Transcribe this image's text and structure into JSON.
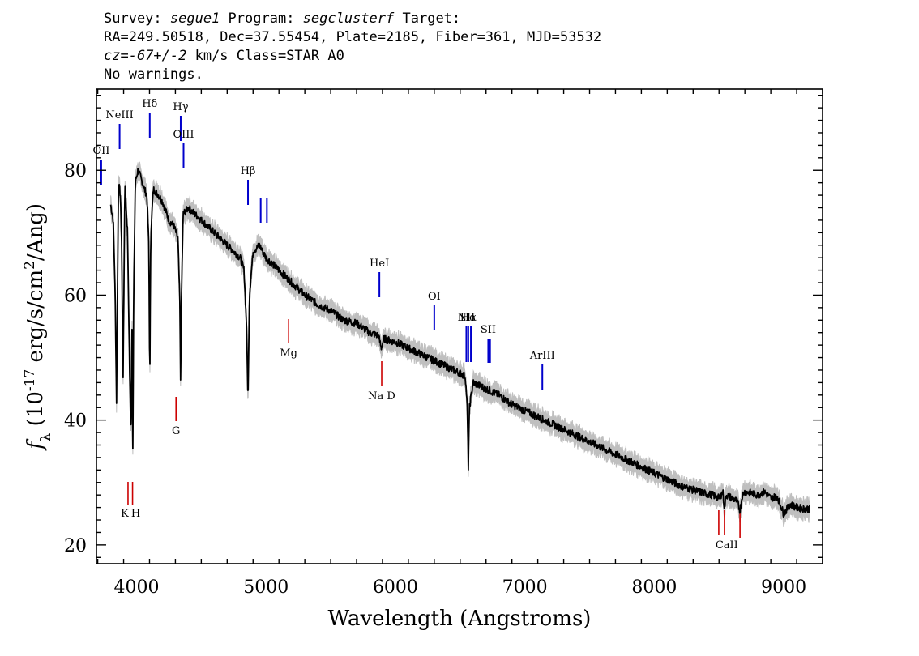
{
  "header": {
    "line1": {
      "survey_label": "Survey: ",
      "survey": "segue1",
      "program_label": " Program: ",
      "program": "segclusterf",
      "target_label": " Target:"
    },
    "line2": "RA=249.50518, Dec=37.55454, Plate=2185, Fiber=361, MJD=53532",
    "line3": {
      "cz_value": "cz=-67+/-2",
      "cz_rest": " km/s Class=STAR A0"
    },
    "line4": "No warnings."
  },
  "chart_data": {
    "type": "line",
    "title": "",
    "xlabel": "Wavelength (Angstroms)",
    "ylabel": "f_λ (10^-17 erg/s/cm^2/Ang)",
    "xlim": [
      3690,
      9300
    ],
    "ylim": [
      17,
      93
    ],
    "x_ticks": [
      4000,
      5000,
      6000,
      7000,
      8000,
      9000
    ],
    "y_ticks": [
      20,
      40,
      60,
      80
    ],
    "grid": false,
    "series": [
      {
        "style": "black flux with grey error envelope",
        "x": [
          3800,
          3820,
          3835,
          3845,
          3860,
          3875,
          3885,
          3895,
          3910,
          3930,
          3945,
          3955,
          3965,
          3970,
          3978,
          3990,
          4010,
          4030,
          4060,
          4080,
          4095,
          4102,
          4110,
          4130,
          4170,
          4200,
          4250,
          4290,
          4320,
          4335,
          4340,
          4347,
          4360,
          4400,
          4450,
          4500,
          4550,
          4600,
          4650,
          4700,
          4750,
          4800,
          4830,
          4850,
          4861,
          4872,
          4900,
          4950,
          5000,
          5100,
          5200,
          5300,
          5400,
          5500,
          5600,
          5700,
          5800,
          5870,
          5890,
          5910,
          6000,
          6100,
          6200,
          6300,
          6400,
          6500,
          6540,
          6555,
          6563,
          6572,
          6600,
          6700,
          6800,
          6900,
          7000,
          7100,
          7200,
          7300,
          7400,
          7500,
          7600,
          7700,
          7800,
          7900,
          8000,
          8100,
          8200,
          8300,
          8400,
          8450,
          8500,
          8530,
          8542,
          8555,
          8600,
          8640,
          8662,
          8680,
          8700,
          8750,
          8800,
          8850,
          8900,
          8950,
          9000,
          9050,
          9100,
          9150,
          9200
        ],
        "y": [
          74.5,
          72,
          60,
          43,
          78,
          76,
          68,
          45,
          78,
          70,
          50,
          38,
          55,
          32,
          60,
          78,
          80,
          79,
          77,
          76,
          68,
          45.5,
          70,
          77,
          76,
          75,
          72,
          71,
          69,
          58,
          46.5,
          60,
          73,
          74,
          73,
          72,
          71,
          70,
          69,
          68,
          67,
          66,
          64,
          55,
          43,
          60,
          67,
          68,
          66,
          64,
          62,
          60,
          58.5,
          57.5,
          56,
          55.5,
          54,
          53.5,
          51.5,
          53,
          52.5,
          51.5,
          50.5,
          49.5,
          48.5,
          47.5,
          47,
          42,
          32.5,
          42,
          46,
          45,
          44,
          42.5,
          41.5,
          40.5,
          39.5,
          38.5,
          37.5,
          36.5,
          35.5,
          34.5,
          33.5,
          32.5,
          31.5,
          30.5,
          29.5,
          28.8,
          28.2,
          28,
          27.5,
          28.5,
          25.8,
          28,
          27.5,
          27,
          25.5,
          28,
          28.5,
          28.3,
          28,
          28.5,
          27.5,
          27.8,
          25,
          26.5,
          26,
          25.8,
          25.8
        ]
      }
    ],
    "emission_lines": [
      {
        "label": "OII",
        "x": 3727
      },
      {
        "label": "NeIII",
        "x": 3869
      },
      {
        "label": "Hδ",
        "x": 4102
      },
      {
        "label": "Hγ",
        "x": 4341
      },
      {
        "label": "OIII",
        "x": 4363
      },
      {
        "label": "Hβ",
        "x": 4861
      },
      {
        "label": "OIII",
        "x": 4959
      },
      {
        "label": "OIII",
        "x": 5007
      },
      {
        "label": "HeI",
        "x": 5876
      },
      {
        "label": "OI",
        "x": 6300
      },
      {
        "label": "NII",
        "x": 6548
      },
      {
        "label": "Hα",
        "x": 6563
      },
      {
        "label": "NII",
        "x": 6583
      },
      {
        "label": "SII",
        "x": 6717
      },
      {
        "label": "SII",
        "x": 6731
      },
      {
        "label": "ArIII",
        "x": 7135
      }
    ],
    "absorption_lines": [
      {
        "label": "K",
        "x": 3934
      },
      {
        "label": "H",
        "x": 3969
      },
      {
        "label": "G",
        "x": 4305
      },
      {
        "label": "Mg",
        "x": 5175
      },
      {
        "label": "Na D",
        "x": 5894
      },
      {
        "label": "CaII",
        "x": 8498
      },
      {
        "label": "CaII",
        "x": 8542
      },
      {
        "label": "CaII",
        "x": 8662
      }
    ]
  },
  "colors": {
    "flux": "#000000",
    "error": "#b4b4b4",
    "emission": "#0000cc",
    "absorption": "#cc0000",
    "axes": "#000000"
  }
}
